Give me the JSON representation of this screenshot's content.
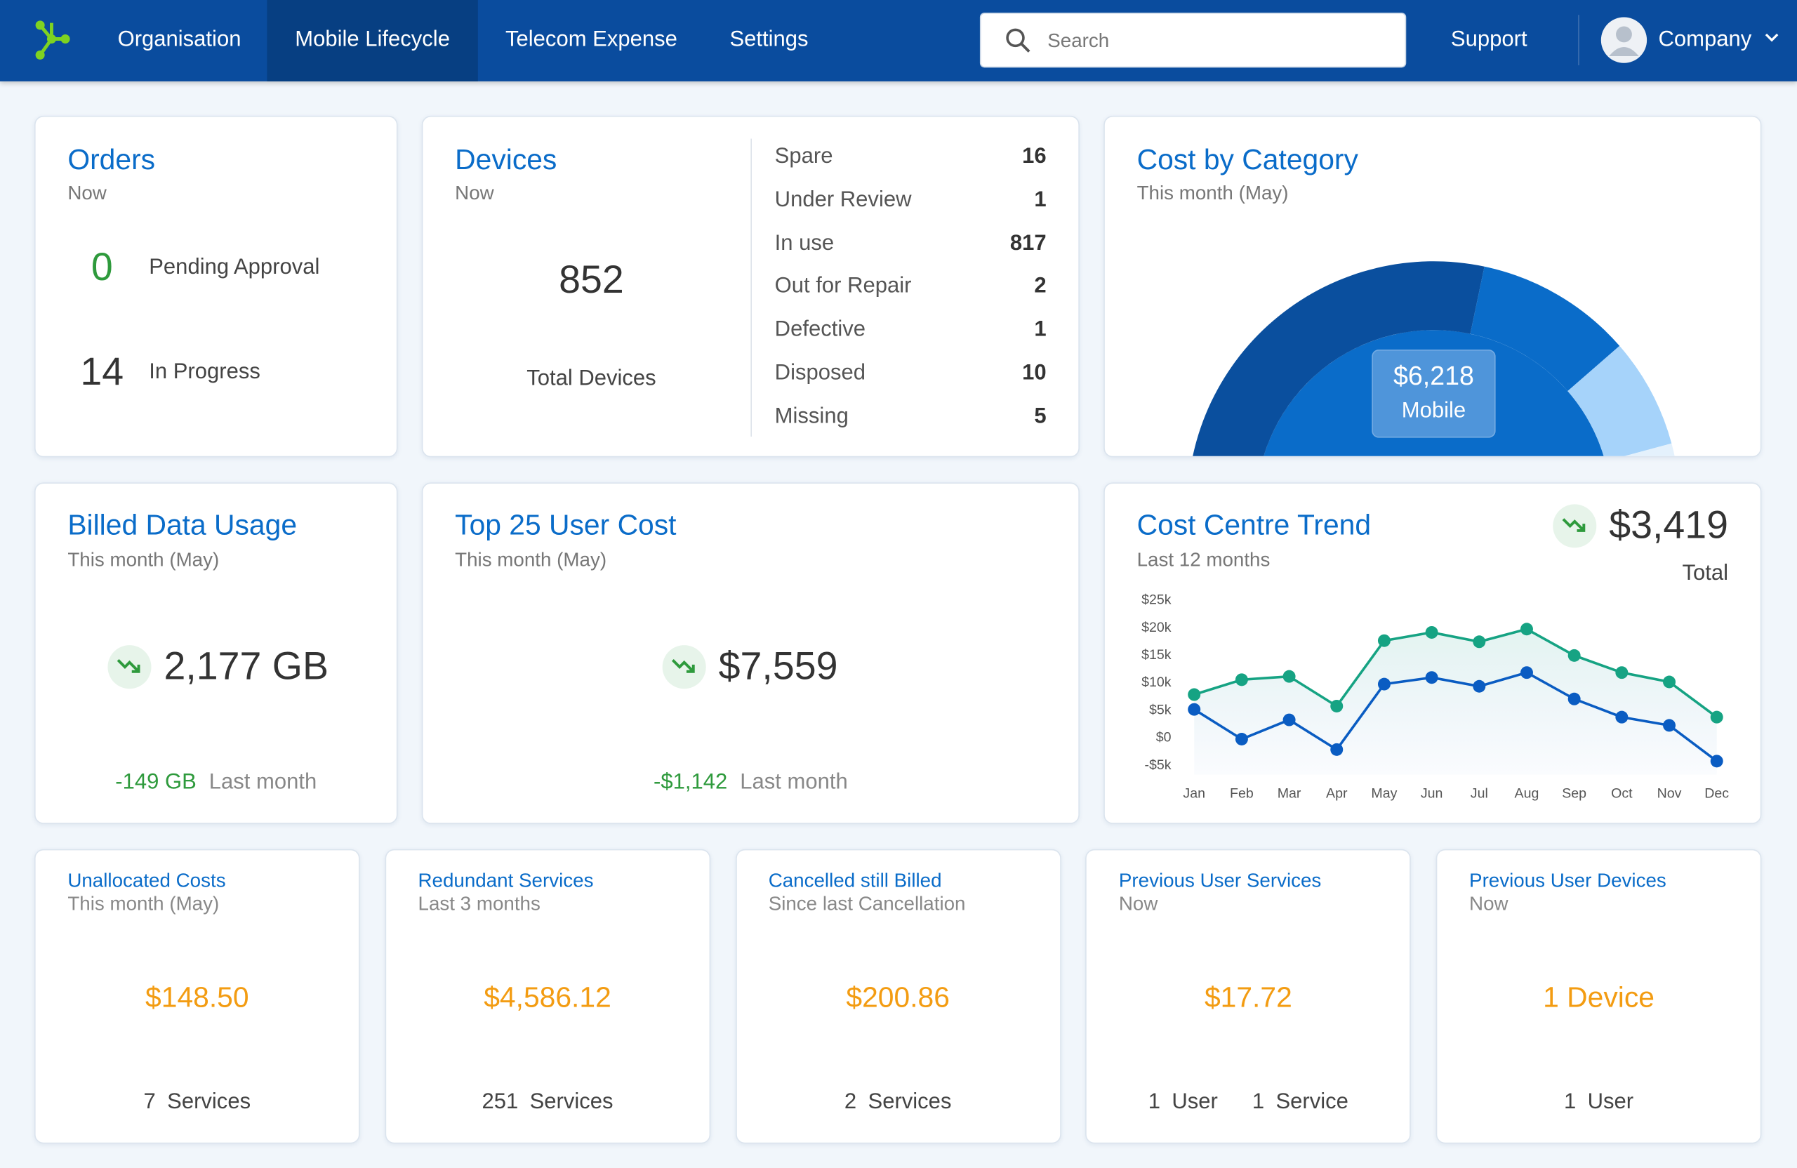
{
  "nav": {
    "items": [
      "Organisation",
      "Mobile Lifecycle",
      "Telecom Expense",
      "Settings"
    ],
    "active": 1,
    "search_placeholder": "Search",
    "support": "Support",
    "account": "Company"
  },
  "orders": {
    "title": "Orders",
    "subtitle": "Now",
    "rows": [
      {
        "count": 0,
        "label": "Pending Approval"
      },
      {
        "count": 14,
        "label": "In Progress"
      }
    ]
  },
  "devices": {
    "title": "Devices",
    "subtitle": "Now",
    "total": 852,
    "total_label": "Total Devices",
    "statuses": [
      {
        "label": "Spare",
        "count": 16
      },
      {
        "label": "Under Review",
        "count": 1
      },
      {
        "label": "In use",
        "count": 817
      },
      {
        "label": "Out for Repair",
        "count": 2
      },
      {
        "label": "Defective",
        "count": 1
      },
      {
        "label": "Disposed",
        "count": 10
      },
      {
        "label": "Missing",
        "count": 5
      }
    ]
  },
  "cost_by_category": {
    "title": "Cost by Category",
    "subtitle": "This month (May)",
    "highlight": {
      "amount": "$6,218",
      "label": "Mobile"
    },
    "segments": [
      {
        "color": "#0a4f9e",
        "value": 28.3
      },
      {
        "color": "#0a6cc9",
        "value": 10.3
      },
      {
        "color": "#a6d3fa",
        "value": 7.2
      },
      {
        "color": "#e4f1fc",
        "value": 4.2
      }
    ]
  },
  "billed_data_usage": {
    "title": "Billed Data Usage",
    "subtitle": "This month (May)",
    "value": "2,177 GB",
    "change": "-149 GB",
    "change_label": "Last month"
  },
  "top_user_cost": {
    "title": "Top 25 User Cost",
    "subtitle": "This month (May)",
    "value": "$7,559",
    "change": "-$1,142",
    "change_label": "Last month"
  },
  "cost_centre_trend": {
    "title": "Cost Centre Trend",
    "subtitle": "Last 12 months",
    "total": "$3,419",
    "total_label": "Total",
    "chart": {
      "type": "line",
      "categories": [
        "Jan",
        "Feb",
        "Mar",
        "Apr",
        "May",
        "Jun",
        "Jul",
        "Aug",
        "Sep",
        "Oct",
        "Nov",
        "Dec"
      ],
      "series": [
        {
          "color": "#16a383",
          "values": [
            7900,
            10600,
            11200,
            5800,
            17700,
            19200,
            17500,
            19800,
            15000,
            11900,
            10200,
            3800
          ]
        },
        {
          "color": "#0a5cc2",
          "values": [
            5200,
            -200,
            3300,
            -2100,
            9800,
            11000,
            9400,
            11900,
            7100,
            3800,
            2300,
            -4200
          ]
        }
      ],
      "ylim": [
        -5000,
        25000
      ],
      "yticks": [
        {
          "value": -5000,
          "label": "-$5k"
        },
        {
          "value": 0,
          "label": "$0"
        },
        {
          "value": 5000,
          "label": "$5k"
        },
        {
          "value": 10000,
          "label": "$10k"
        },
        {
          "value": 15000,
          "label": "$15k"
        },
        {
          "value": 20000,
          "label": "$20k"
        },
        {
          "value": 25000,
          "label": "$25k"
        }
      ]
    }
  },
  "tiles": [
    {
      "title": "Unallocated Costs",
      "subtitle": "This month (May)",
      "amount": "$148.50",
      "counts": [
        {
          "count": 7,
          "label": "Services"
        }
      ]
    },
    {
      "title": "Redundant Services",
      "subtitle": "Last 3 months",
      "amount": "$4,586.12",
      "counts": [
        {
          "count": 251,
          "label": "Services"
        }
      ]
    },
    {
      "title": "Cancelled still Billed",
      "subtitle": "Since last Cancellation",
      "amount": "$200.86",
      "counts": [
        {
          "count": 2,
          "label": "Services"
        }
      ]
    },
    {
      "title": "Previous User Services",
      "subtitle": "Now",
      "amount": "$17.72",
      "counts": [
        {
          "count": 1,
          "label": "User"
        },
        {
          "count": 1,
          "label": "Service"
        }
      ]
    },
    {
      "title": "Previous User Devices",
      "subtitle": "Now",
      "amount": "1 Device",
      "counts": [
        {
          "count": 1,
          "label": "User"
        }
      ]
    }
  ]
}
